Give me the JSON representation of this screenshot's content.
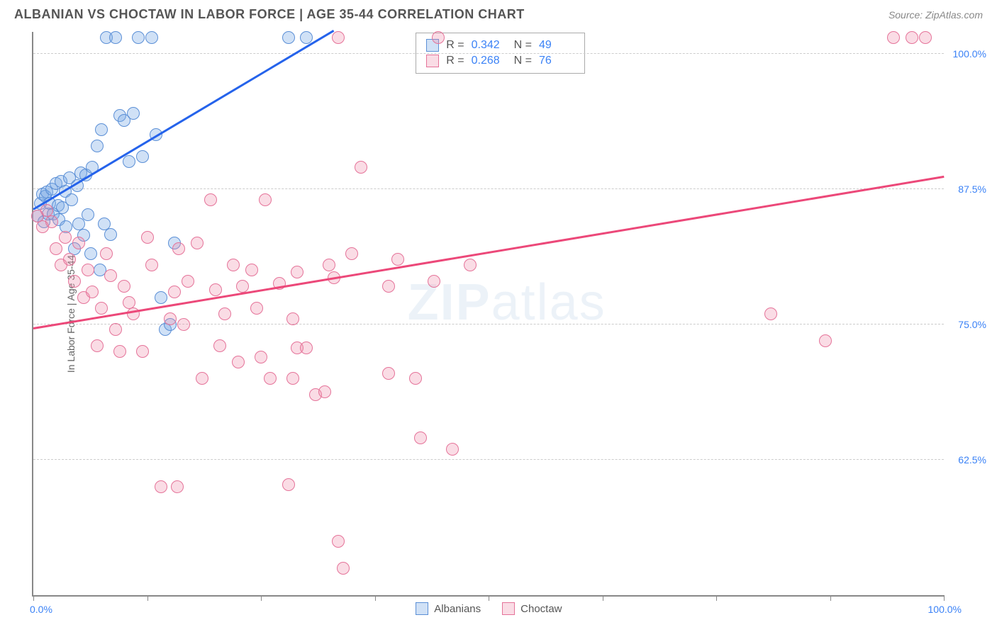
{
  "header": {
    "title": "ALBANIAN VS CHOCTAW IN LABOR FORCE | AGE 35-44 CORRELATION CHART",
    "source": "Source: ZipAtlas.com"
  },
  "chart": {
    "type": "scatter",
    "y_axis_label": "In Labor Force | Age 35-44",
    "xlim": [
      0,
      100
    ],
    "ylim": [
      50,
      102
    ],
    "x_min_label": "0.0%",
    "x_max_label": "100.0%",
    "y_ticks": [
      62.5,
      75.0,
      87.5,
      100.0
    ],
    "y_tick_labels": [
      "62.5%",
      "75.0%",
      "87.5%",
      "100.0%"
    ],
    "x_tick_positions": [
      0,
      12.5,
      25,
      37.5,
      50,
      62.5,
      75,
      87.5,
      100
    ],
    "background_color": "#ffffff",
    "grid_color": "#cccccc",
    "axis_color": "#888888",
    "tick_label_color": "#3b82f6",
    "marker_size": 18,
    "series": [
      {
        "name": "Albanians",
        "fill_color": "rgba(120,170,230,0.35)",
        "stroke_color": "#5b8fd6",
        "line_color": "#2563eb",
        "R": "0.342",
        "N": "49",
        "trend": {
          "x1": 0,
          "y1": 85.5,
          "x2": 33,
          "y2": 102
        },
        "points": [
          [
            0.5,
            85
          ],
          [
            0.8,
            86.2
          ],
          [
            1,
            87
          ],
          [
            1.2,
            84.5
          ],
          [
            1.3,
            86.8
          ],
          [
            1.5,
            87.2
          ],
          [
            1.6,
            85.2
          ],
          [
            1.8,
            86.2
          ],
          [
            2,
            87.5
          ],
          [
            2.2,
            85.2
          ],
          [
            2.5,
            88
          ],
          [
            2.7,
            86
          ],
          [
            2.8,
            84.7
          ],
          [
            3,
            88.2
          ],
          [
            3.2,
            85.8
          ],
          [
            3.5,
            87.3
          ],
          [
            3.6,
            84
          ],
          [
            4,
            88.5
          ],
          [
            4.2,
            86.5
          ],
          [
            4.5,
            82
          ],
          [
            4.8,
            87.8
          ],
          [
            5,
            84.3
          ],
          [
            5.2,
            89
          ],
          [
            5.5,
            83.2
          ],
          [
            5.8,
            88.8
          ],
          [
            6,
            85.1
          ],
          [
            6.3,
            81.5
          ],
          [
            6.5,
            89.5
          ],
          [
            7,
            91.5
          ],
          [
            7.3,
            80
          ],
          [
            7.5,
            93
          ],
          [
            7.8,
            84.3
          ],
          [
            8,
            101.5
          ],
          [
            8.5,
            83.3
          ],
          [
            9,
            101.5
          ],
          [
            9.5,
            94.3
          ],
          [
            10,
            93.8
          ],
          [
            10.5,
            90
          ],
          [
            11,
            94.5
          ],
          [
            11.5,
            101.5
          ],
          [
            12,
            90.5
          ],
          [
            13,
            101.5
          ],
          [
            13.5,
            92.5
          ],
          [
            14,
            77.5
          ],
          [
            14.5,
            74.5
          ],
          [
            15,
            75
          ],
          [
            15.5,
            82.5
          ],
          [
            28,
            101.5
          ],
          [
            30,
            101.5
          ]
        ]
      },
      {
        "name": "Choctaw",
        "fill_color": "rgba(240,140,170,0.30)",
        "stroke_color": "#e57399",
        "line_color": "#ec4879",
        "R": "0.268",
        "N": "76",
        "trend": {
          "x1": 0,
          "y1": 74.5,
          "x2": 100,
          "y2": 88.5
        },
        "points": [
          [
            0.5,
            85
          ],
          [
            1,
            84
          ],
          [
            1.5,
            85.5
          ],
          [
            2,
            84.5
          ],
          [
            2.5,
            82
          ],
          [
            3,
            80.5
          ],
          [
            3.5,
            83
          ],
          [
            4,
            81
          ],
          [
            4.5,
            79
          ],
          [
            5,
            82.5
          ],
          [
            5.5,
            77.5
          ],
          [
            6,
            80
          ],
          [
            6.5,
            78
          ],
          [
            7,
            73
          ],
          [
            7.5,
            76.5
          ],
          [
            8,
            81.5
          ],
          [
            8.5,
            79.5
          ],
          [
            9,
            74.5
          ],
          [
            9.5,
            72.5
          ],
          [
            10,
            78.5
          ],
          [
            10.5,
            77
          ],
          [
            11,
            76
          ],
          [
            12,
            72.5
          ],
          [
            12.5,
            83
          ],
          [
            13,
            80.5
          ],
          [
            14,
            60
          ],
          [
            15,
            75.5
          ],
          [
            15.5,
            78
          ],
          [
            15.8,
            60
          ],
          [
            16,
            82
          ],
          [
            16.5,
            75
          ],
          [
            17,
            79
          ],
          [
            18,
            82.5
          ],
          [
            18.5,
            70
          ],
          [
            19.5,
            86.5
          ],
          [
            20,
            78.2
          ],
          [
            20.5,
            73
          ],
          [
            21,
            76
          ],
          [
            22,
            80.5
          ],
          [
            22.5,
            71.5
          ],
          [
            23,
            78.5
          ],
          [
            24,
            80
          ],
          [
            24.5,
            76.5
          ],
          [
            25,
            72
          ],
          [
            25.5,
            86.5
          ],
          [
            26,
            70
          ],
          [
            27,
            78.8
          ],
          [
            28,
            60.2
          ],
          [
            28.5,
            75.5
          ],
          [
            28.5,
            70
          ],
          [
            29,
            79.8
          ],
          [
            29,
            72.8
          ],
          [
            30,
            72.8
          ],
          [
            31,
            68.5
          ],
          [
            32,
            68.8
          ],
          [
            32.5,
            80.5
          ],
          [
            33,
            79.3
          ],
          [
            33.5,
            101.5
          ],
          [
            33.5,
            55
          ],
          [
            34,
            52.5
          ],
          [
            35,
            81.5
          ],
          [
            36,
            89.5
          ],
          [
            39,
            78.5
          ],
          [
            39,
            70.5
          ],
          [
            40,
            81
          ],
          [
            42,
            70
          ],
          [
            42.5,
            64.5
          ],
          [
            44,
            79
          ],
          [
            44.5,
            101.5
          ],
          [
            46,
            63.5
          ],
          [
            48,
            80.5
          ],
          [
            81,
            76
          ],
          [
            87,
            73.5
          ],
          [
            94.5,
            101.5
          ],
          [
            96.5,
            101.5
          ],
          [
            98,
            101.5
          ]
        ]
      }
    ],
    "watermark": {
      "part1": "ZIP",
      "part2": "atlas"
    },
    "legend_labels": {
      "series1": "Albanians",
      "series2": "Choctaw"
    },
    "stats_labels": {
      "R": "R =",
      "N": "N ="
    }
  }
}
